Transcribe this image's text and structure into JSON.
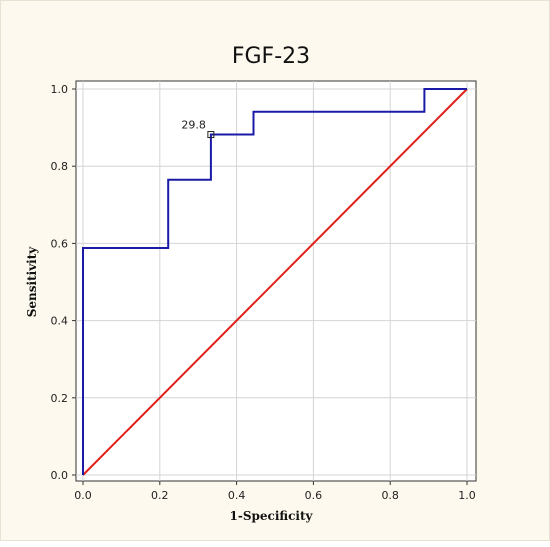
{
  "chart_data": {
    "type": "line",
    "title": "FGF-23",
    "xlabel": "1-Specificity",
    "ylabel": "Sensitivity",
    "xlim": [
      0,
      1
    ],
    "ylim": [
      0,
      1
    ],
    "xticks": [
      "0.0",
      "0.2",
      "0.4",
      "0.6",
      "0.8",
      "1.0"
    ],
    "yticks": [
      "0.0",
      "0.2",
      "0.4",
      "0.6",
      "0.8",
      "1.0"
    ],
    "grid": true,
    "series": [
      {
        "color": "#1a1aa6",
        "step": true,
        "points": [
          [
            0.0,
            0.0
          ],
          [
            0.0,
            0.588
          ],
          [
            0.222,
            0.588
          ],
          [
            0.222,
            0.765
          ],
          [
            0.333,
            0.765
          ],
          [
            0.333,
            0.882
          ],
          [
            0.444,
            0.882
          ],
          [
            0.444,
            0.941
          ],
          [
            0.889,
            0.941
          ],
          [
            0.889,
            1.0
          ],
          [
            1.0,
            1.0
          ]
        ]
      },
      {
        "color": "#e0201a",
        "points": [
          [
            0,
            0
          ],
          [
            1,
            1
          ]
        ]
      }
    ],
    "annotations": [
      {
        "text": "29.8",
        "x": 0.333,
        "y": 0.882,
        "marker": "square"
      }
    ]
  }
}
